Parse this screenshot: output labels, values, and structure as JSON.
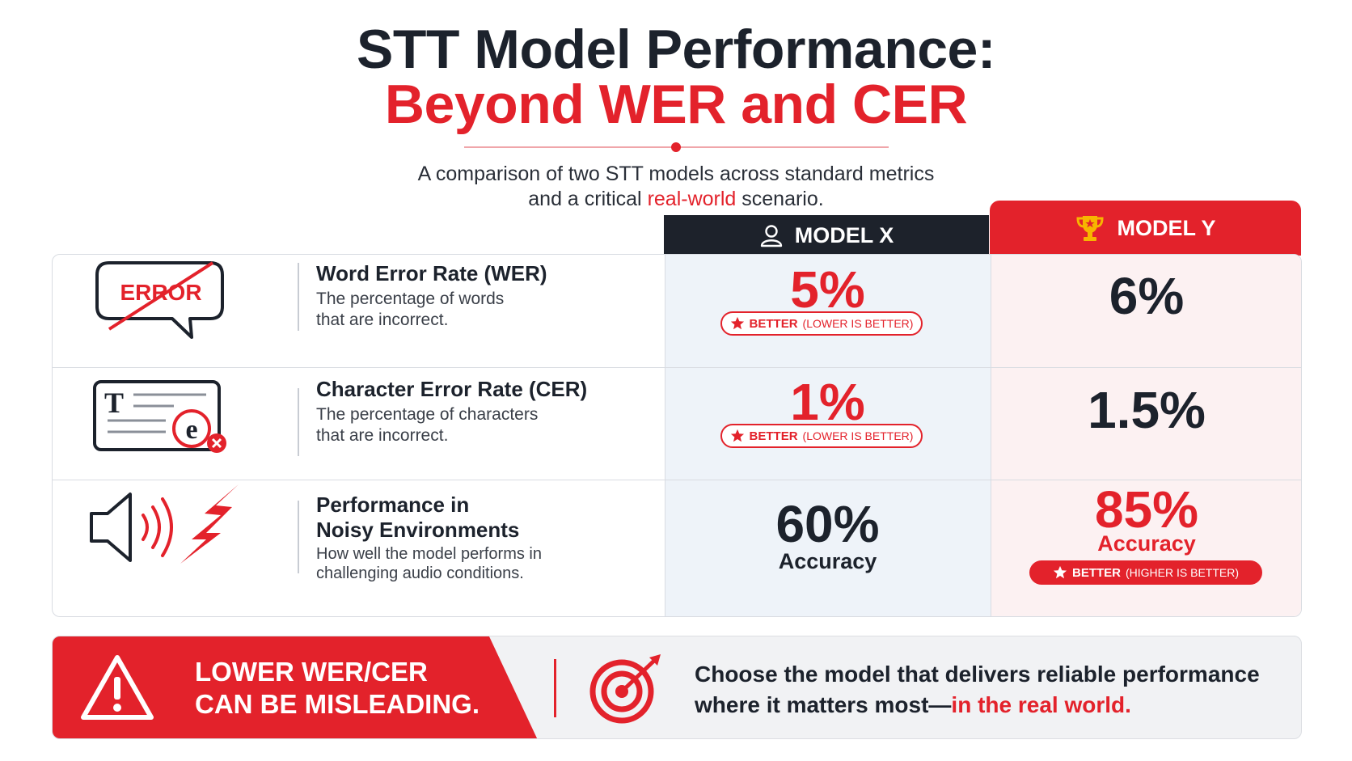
{
  "header": {
    "title_line1": "STT Model Performance:",
    "title_line2": "Beyond WER and CER",
    "subtitle_line1": "A comparison of two STT models across standard metrics",
    "subtitle_line2_pre": "and a critical ",
    "subtitle_line2_highlight": "real-world",
    "subtitle_line2_post": " scenario."
  },
  "columns": {
    "model_x": {
      "label": "MODEL X",
      "icon": "user-icon"
    },
    "model_y": {
      "label": "MODEL Y",
      "icon": "trophy-icon"
    }
  },
  "rows": [
    {
      "icon": "error-speech-bubble-icon",
      "icon_text": "ERROR",
      "title": "Word Error Rate (WER)",
      "description": "The percentage of words that are incorrect.",
      "model_x_value": "5%",
      "model_x_badge_main": "BETTER",
      "model_x_badge_note": "(LOWER IS BETTER)",
      "model_y_value": "6%"
    },
    {
      "icon": "text-character-error-icon",
      "icon_text": "T",
      "icon_text_2": "e",
      "title": "Character Error Rate (CER)",
      "description": "The percentage of characters that are incorrect.",
      "model_x_value": "1%",
      "model_x_badge_main": "BETTER",
      "model_x_badge_note": "(LOWER IS BETTER)",
      "model_y_value": "1.5%"
    },
    {
      "icon": "speaker-noise-icon",
      "title_line1": "Performance in",
      "title_line2": "Noisy Environments",
      "description": "How well the model performs in challenging audio conditions.",
      "model_x_value": "60%",
      "model_x_sublabel": "Accuracy",
      "model_y_value": "85%",
      "model_y_sublabel": "Accuracy",
      "model_y_badge_main": "BETTER",
      "model_y_badge_note": "(HIGHER IS BETTER)"
    }
  ],
  "footer": {
    "warning_icon": "warning-triangle-icon",
    "warning_line1": "LOWER WER/CER",
    "warning_line2": "CAN BE MISLEADING.",
    "target_icon": "target-icon",
    "message_line1": "Choose the model that delivers reliable performance",
    "message_line2_pre": "where it matters most—",
    "message_line2_highlight": "in the real world."
  },
  "colors": {
    "accent": "#e3222b",
    "dark": "#1c222c",
    "model_x_bg": "#eef3f9",
    "model_y_bg": "#fcf1f2"
  }
}
